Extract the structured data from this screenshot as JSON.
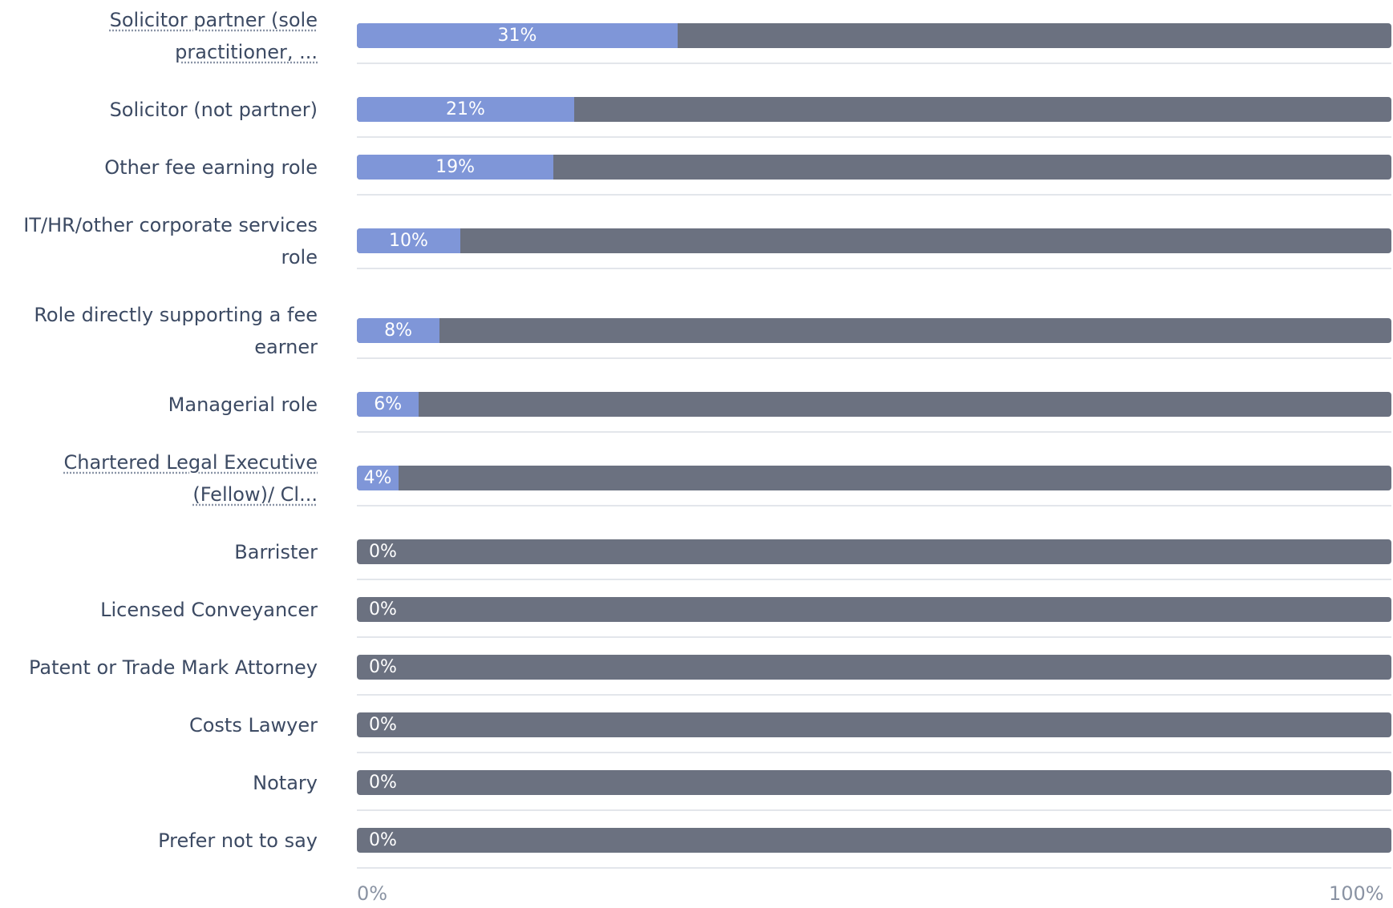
{
  "chart_data": {
    "type": "bar",
    "orientation": "horizontal",
    "stacked_100": true,
    "categories": [
      "Solicitor partner (sole practitioner, ...",
      "Solicitor (not partner)",
      "Other fee earning role",
      "IT/HR/other corporate services role",
      "Role directly supporting a fee earner",
      "Managerial role",
      "Chartered Legal Executive (Fellow)/ Cl...",
      "Barrister",
      "Licensed Conveyancer",
      "Patent or Trade Mark Attorney",
      "Costs Lawyer",
      "Notary",
      "Prefer not to say"
    ],
    "values": [
      31,
      21,
      19,
      10,
      8,
      6,
      4,
      0,
      0,
      0,
      0,
      0,
      0
    ],
    "value_labels": [
      "31%",
      "21%",
      "19%",
      "10%",
      "8%",
      "6%",
      "4%",
      "0%",
      "0%",
      "0%",
      "0%",
      "0%",
      "0%"
    ],
    "truncated_labels": [
      0,
      6
    ],
    "xlim": [
      0,
      100
    ],
    "x_ticks": [
      "0%",
      "100%"
    ],
    "colors": {
      "value": "#7f96d8",
      "remainder": "#6b7180"
    },
    "grid": false
  }
}
